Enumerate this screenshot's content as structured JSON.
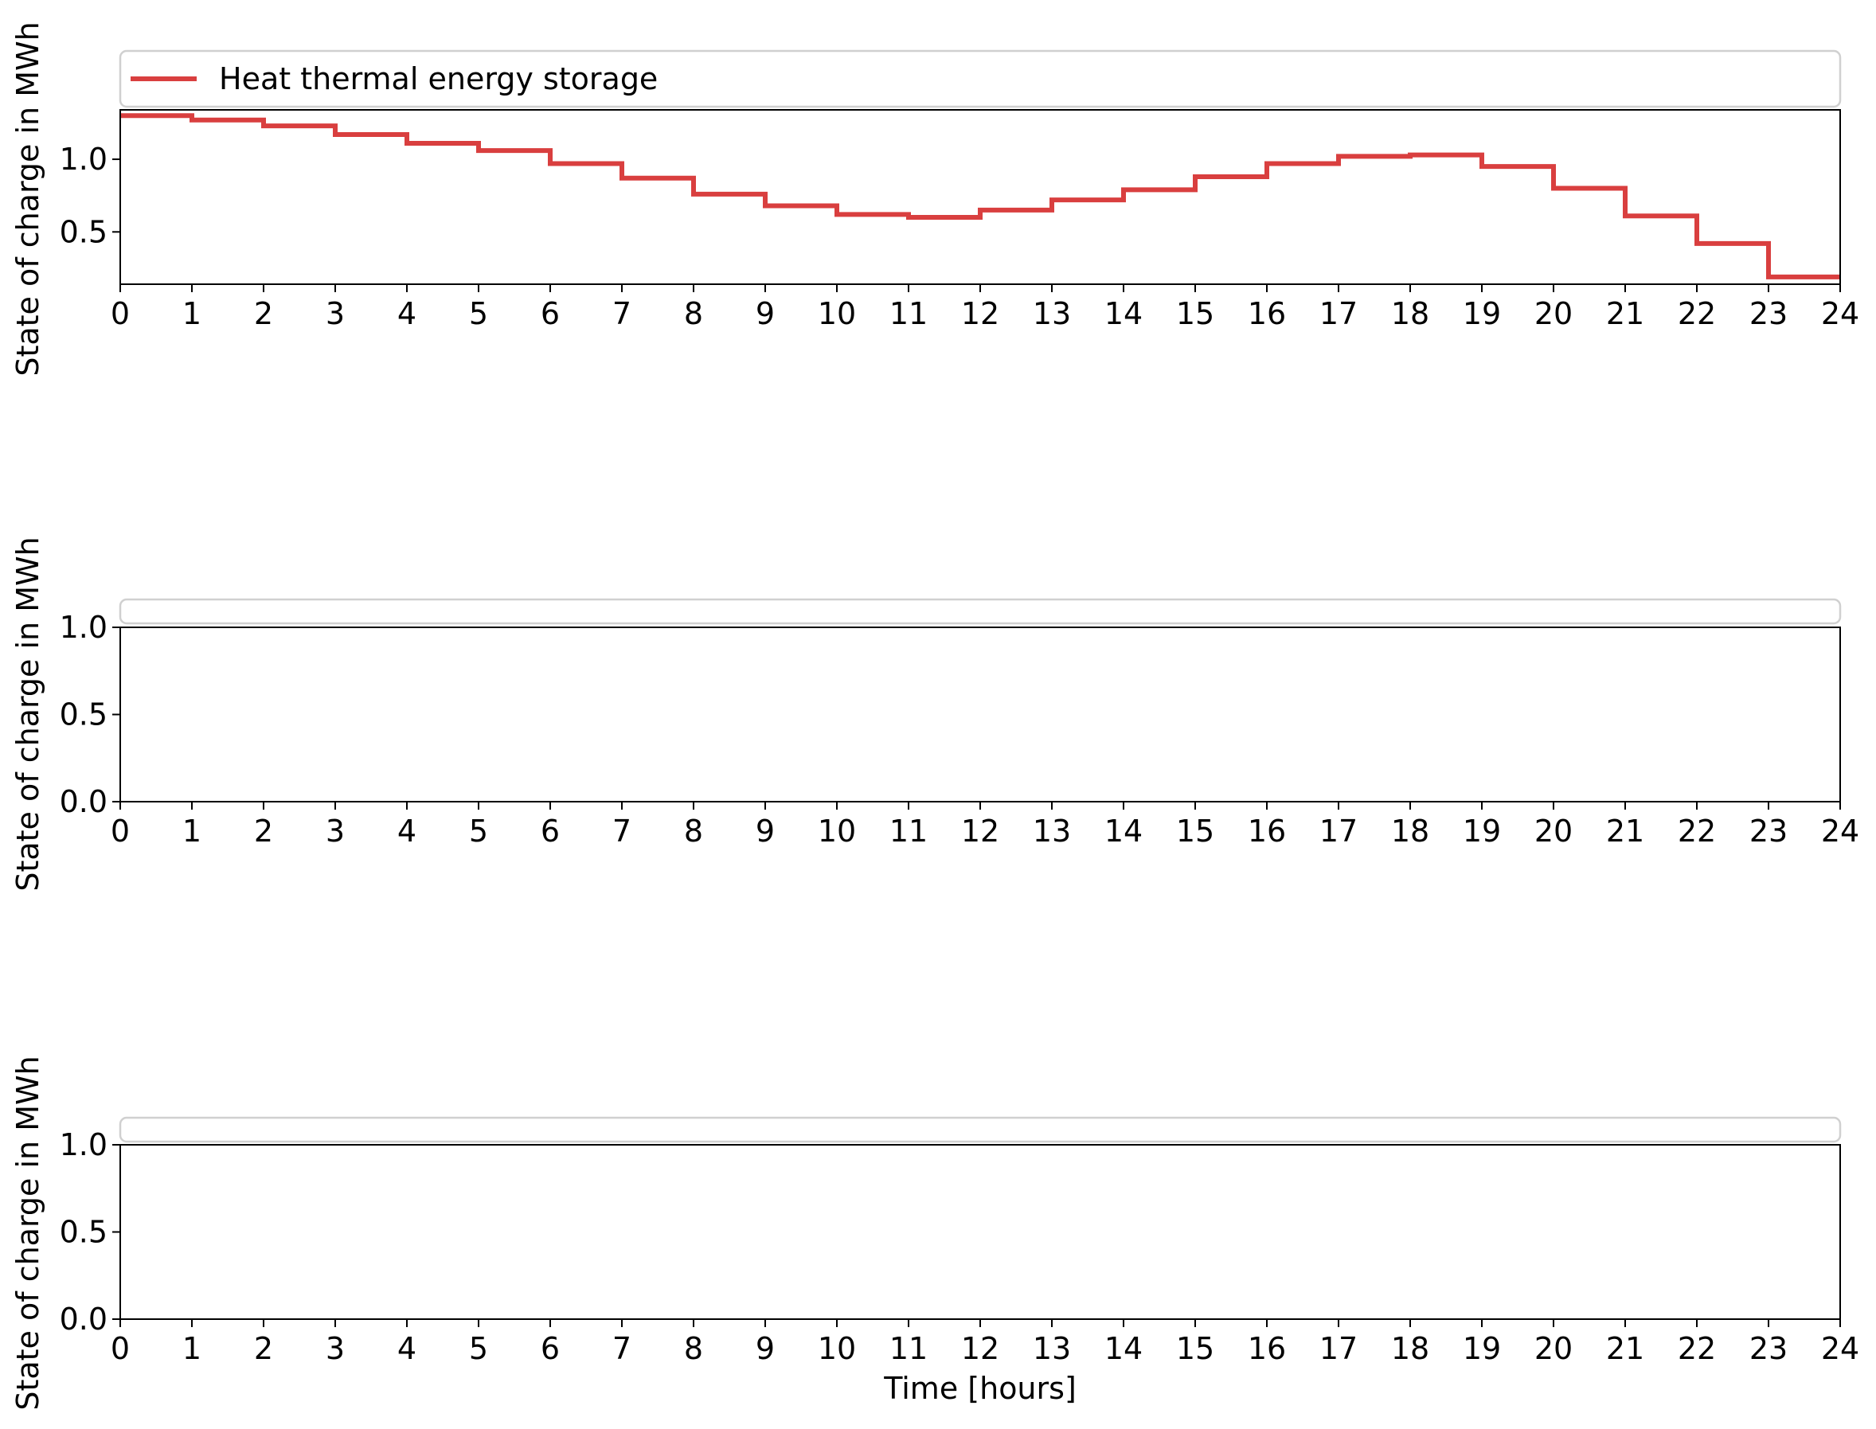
{
  "chart_data": [
    {
      "type": "line",
      "step": "post",
      "xlabel": "",
      "ylabel": "State of charge in MWh",
      "xlim": [
        0,
        24
      ],
      "ylim": [
        0.14,
        1.34
      ],
      "xticks": [
        0,
        1,
        2,
        3,
        4,
        5,
        6,
        7,
        8,
        9,
        10,
        11,
        12,
        13,
        14,
        15,
        16,
        17,
        18,
        19,
        20,
        21,
        22,
        23,
        24
      ],
      "yticks": [
        0.5,
        1.0
      ],
      "ytick_labels": [
        "0.5",
        "1.0"
      ],
      "legend": "top",
      "series": [
        {
          "name": "Heat thermal energy storage",
          "color": "#d93f3f",
          "x": [
            0,
            1,
            2,
            3,
            4,
            5,
            6,
            7,
            8,
            9,
            10,
            11,
            12,
            13,
            14,
            15,
            16,
            17,
            18,
            19,
            20,
            21,
            22,
            23,
            24
          ],
          "values": [
            1.3,
            1.27,
            1.23,
            1.17,
            1.11,
            1.06,
            0.97,
            0.87,
            0.76,
            0.68,
            0.62,
            0.6,
            0.65,
            0.72,
            0.79,
            0.88,
            0.97,
            1.02,
            1.03,
            0.95,
            0.8,
            0.61,
            0.42,
            0.19,
            0.19
          ]
        }
      ]
    },
    {
      "type": "line",
      "xlabel": "",
      "ylabel": "State of charge in MWh",
      "xlim": [
        0,
        24
      ],
      "ylim": [
        0.0,
        1.0
      ],
      "xticks": [
        0,
        1,
        2,
        3,
        4,
        5,
        6,
        7,
        8,
        9,
        10,
        11,
        12,
        13,
        14,
        15,
        16,
        17,
        18,
        19,
        20,
        21,
        22,
        23,
        24
      ],
      "yticks": [
        0.0,
        0.5,
        1.0
      ],
      "ytick_labels": [
        "0.0",
        "0.5",
        "1.0"
      ],
      "legend": "top",
      "series": []
    },
    {
      "type": "line",
      "xlabel": "Time [hours]",
      "ylabel": "State of charge in MWh",
      "xlim": [
        0,
        24
      ],
      "ylim": [
        0.0,
        1.0
      ],
      "xticks": [
        0,
        1,
        2,
        3,
        4,
        5,
        6,
        7,
        8,
        9,
        10,
        11,
        12,
        13,
        14,
        15,
        16,
        17,
        18,
        19,
        20,
        21,
        22,
        23,
        24
      ],
      "yticks": [
        0.0,
        0.5,
        1.0
      ],
      "ytick_labels": [
        "0.0",
        "0.5",
        "1.0"
      ],
      "legend": "top",
      "series": []
    }
  ]
}
